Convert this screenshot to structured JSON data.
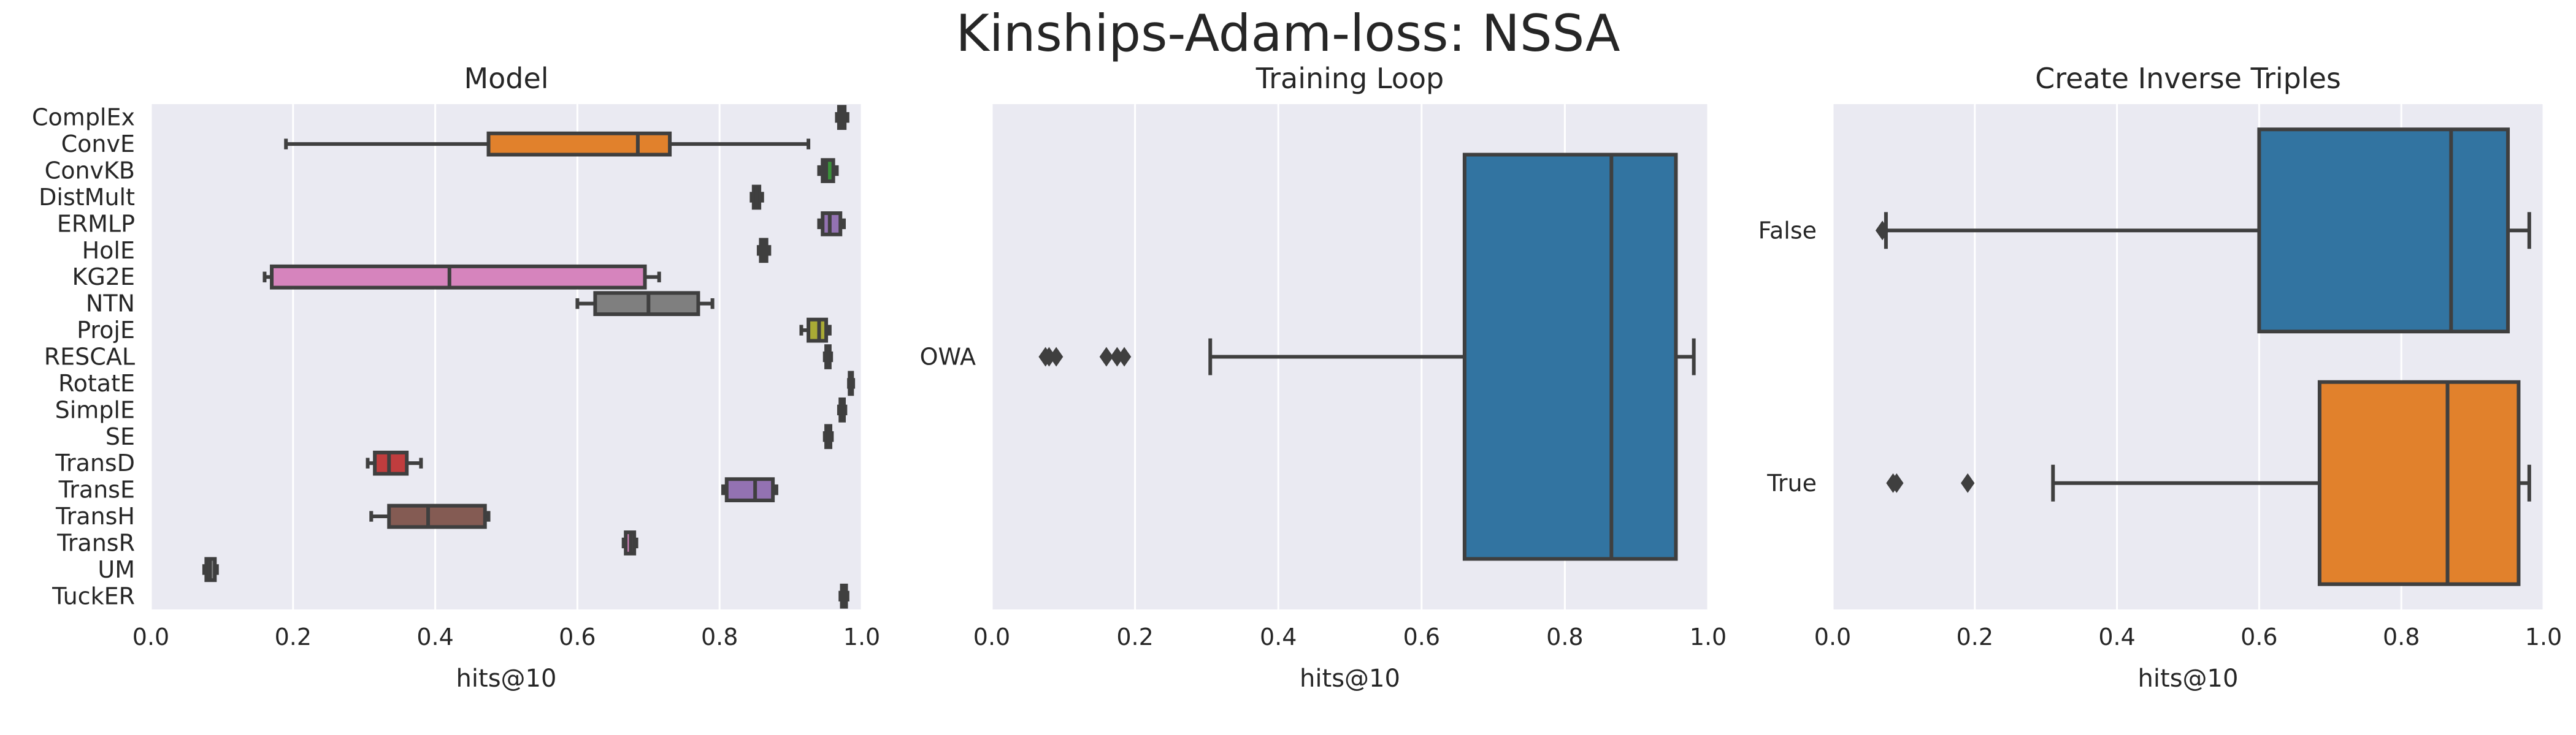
{
  "title": "Kinships-Adam-loss: NSSA",
  "colors": {
    "background": "#eaeaf2",
    "grid": "#ffffff",
    "line": "#3f3f3f",
    "text": "#262626"
  },
  "chart_data": [
    {
      "type": "box",
      "orient": "horizontal",
      "title": "Model",
      "xlabel": "hits@10",
      "xlim": [
        0,
        1
      ],
      "xticks": [
        "0.0",
        "0.2",
        "0.4",
        "0.6",
        "0.8",
        "1.0"
      ],
      "grid": true,
      "categories": [
        "ComplEx",
        "ConvE",
        "ConvKB",
        "DistMult",
        "ERMLP",
        "HolE",
        "KG2E",
        "NTN",
        "ProjE",
        "RESCAL",
        "RotatE",
        "SimplE",
        "SE",
        "TransD",
        "TransE",
        "TransH",
        "TransR",
        "UM",
        "TuckER"
      ],
      "boxes": [
        {
          "min": 0.965,
          "q1": 0.968,
          "median": 0.972,
          "q3": 0.976,
          "max": 0.98,
          "color": "#3274a1",
          "outliers": []
        },
        {
          "min": 0.19,
          "q1": 0.475,
          "median": 0.685,
          "q3": 0.73,
          "max": 0.925,
          "color": "#e1812c",
          "outliers": []
        },
        {
          "min": 0.94,
          "q1": 0.945,
          "median": 0.95,
          "q3": 0.96,
          "max": 0.965,
          "color": "#3a923a",
          "outliers": []
        },
        {
          "min": 0.845,
          "q1": 0.848,
          "median": 0.852,
          "q3": 0.856,
          "max": 0.86,
          "color": "#c03d3e",
          "outliers": []
        },
        {
          "min": 0.94,
          "q1": 0.945,
          "median": 0.955,
          "q3": 0.97,
          "max": 0.975,
          "color": "#9372b2",
          "outliers": []
        },
        {
          "min": 0.855,
          "q1": 0.858,
          "median": 0.862,
          "q3": 0.866,
          "max": 0.87,
          "color": "#845b53",
          "outliers": []
        },
        {
          "min": 0.16,
          "q1": 0.17,
          "median": 0.42,
          "q3": 0.695,
          "max": 0.715,
          "color": "#d684bd",
          "outliers": []
        },
        {
          "min": 0.6,
          "q1": 0.625,
          "median": 0.7,
          "q3": 0.77,
          "max": 0.79,
          "color": "#7f7f7f",
          "outliers": []
        },
        {
          "min": 0.915,
          "q1": 0.925,
          "median": 0.94,
          "q3": 0.95,
          "max": 0.955,
          "color": "#a9aa35",
          "outliers": []
        },
        {
          "min": 0.948,
          "q1": 0.95,
          "median": 0.952,
          "q3": 0.955,
          "max": 0.957,
          "color": "#2ebece",
          "outliers": []
        },
        {
          "min": 0.982,
          "q1": 0.983,
          "median": 0.985,
          "q3": 0.986,
          "max": 0.988,
          "color": "#3274a1",
          "outliers": []
        },
        {
          "min": 0.968,
          "q1": 0.97,
          "median": 0.972,
          "q3": 0.975,
          "max": 0.977,
          "color": "#e1812c",
          "outliers": []
        },
        {
          "min": 0.948,
          "q1": 0.95,
          "median": 0.953,
          "q3": 0.956,
          "max": 0.958,
          "color": "#3a923a",
          "outliers": []
        },
        {
          "min": 0.305,
          "q1": 0.315,
          "median": 0.335,
          "q3": 0.36,
          "max": 0.38,
          "color": "#c03d3e",
          "outliers": []
        },
        {
          "min": 0.805,
          "q1": 0.81,
          "median": 0.85,
          "q3": 0.875,
          "max": 0.88,
          "color": "#9372b2",
          "outliers": []
        },
        {
          "min": 0.31,
          "q1": 0.335,
          "median": 0.39,
          "q3": 0.47,
          "max": 0.475,
          "color": "#845b53",
          "outliers": []
        },
        {
          "min": 0.665,
          "q1": 0.668,
          "median": 0.675,
          "q3": 0.68,
          "max": 0.683,
          "color": "#d684bd",
          "outliers": []
        },
        {
          "min": 0.075,
          "q1": 0.078,
          "median": 0.083,
          "q3": 0.09,
          "max": 0.093,
          "color": "#7f7f7f",
          "outliers": []
        },
        {
          "min": 0.97,
          "q1": 0.972,
          "median": 0.975,
          "q3": 0.978,
          "max": 0.98,
          "color": "#a9aa35",
          "outliers": []
        }
      ]
    },
    {
      "type": "box",
      "orient": "horizontal",
      "title": "Training Loop",
      "xlabel": "hits@10",
      "xlim": [
        0,
        1
      ],
      "xticks": [
        "0.0",
        "0.2",
        "0.4",
        "0.6",
        "0.8",
        "1.0"
      ],
      "grid": true,
      "categories": [
        "OWA"
      ],
      "boxes": [
        {
          "min": 0.305,
          "q1": 0.66,
          "median": 0.865,
          "q3": 0.955,
          "max": 0.98,
          "color": "#3274a1",
          "outliers": [
            0.075,
            0.08,
            0.09,
            0.16,
            0.175,
            0.185
          ]
        }
      ]
    },
    {
      "type": "box",
      "orient": "horizontal",
      "title": "Create Inverse Triples",
      "xlabel": "hits@10",
      "xlim": [
        0,
        1
      ],
      "xticks": [
        "0.0",
        "0.2",
        "0.4",
        "0.6",
        "0.8",
        "1.0"
      ],
      "grid": true,
      "categories": [
        "False",
        "True"
      ],
      "boxes": [
        {
          "min": 0.075,
          "q1": 0.6,
          "median": 0.87,
          "q3": 0.95,
          "max": 0.98,
          "color": "#3274a1",
          "outliers": [
            0.07
          ]
        },
        {
          "min": 0.31,
          "q1": 0.685,
          "median": 0.865,
          "q3": 0.965,
          "max": 0.98,
          "color": "#e1812c",
          "outliers": [
            0.085,
            0.09,
            0.19
          ]
        }
      ]
    }
  ]
}
